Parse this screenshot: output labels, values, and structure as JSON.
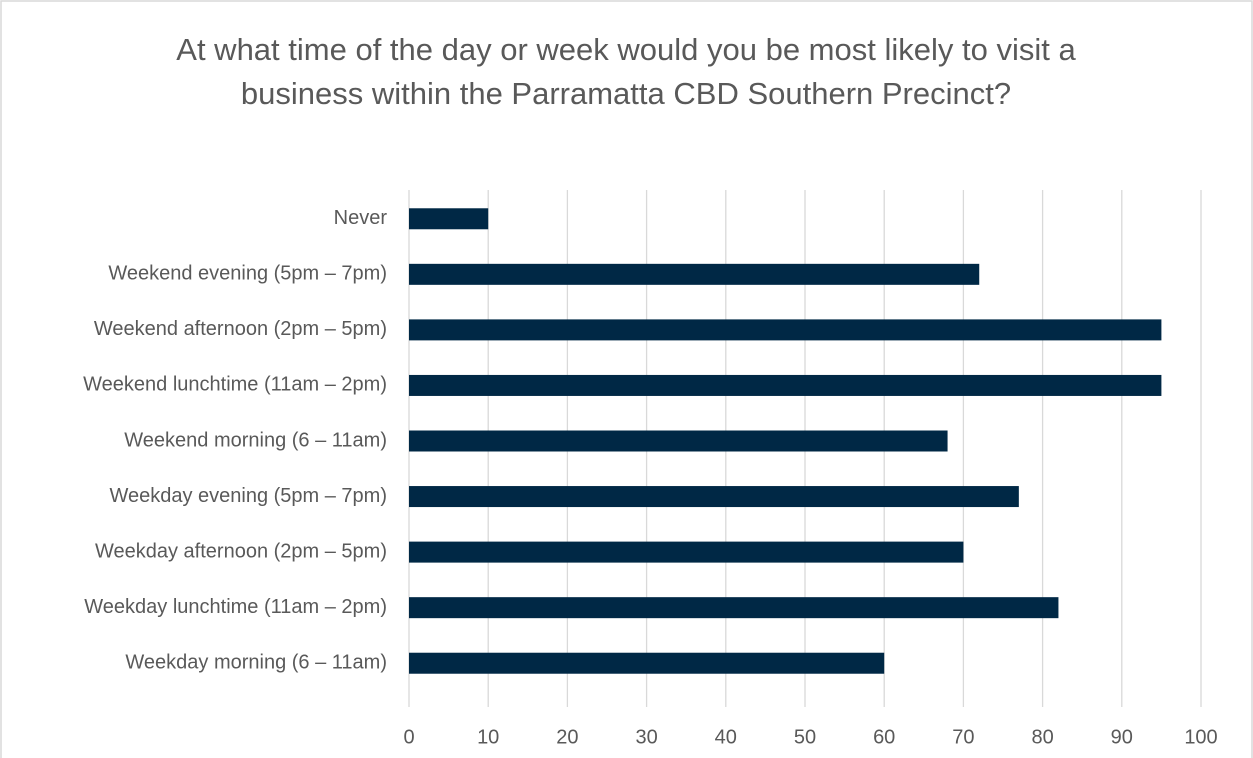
{
  "chart_data": {
    "type": "hbar",
    "title": "At what time of the day or week would you be most likely to visit a business within the Parramatta CBD Southern Precinct?",
    "categories": [
      "Never",
      "Weekend evening (5pm – 7pm)",
      "Weekend afternoon (2pm – 5pm)",
      "Weekend lunchtime (11am – 2pm)",
      "Weekend morning (6 – 11am)",
      "Weekday evening (5pm – 7pm)",
      "Weekday afternoon (2pm – 5pm)",
      "Weekday lunchtime (11am – 2pm)",
      "Weekday morning (6 – 11am)"
    ],
    "values": [
      10,
      72,
      95,
      95,
      68,
      77,
      70,
      82,
      60
    ],
    "color": "#002845",
    "xlim": [
      0,
      100
    ],
    "xticks": [
      0,
      10,
      20,
      30,
      40,
      50,
      60,
      70,
      80,
      90,
      100
    ],
    "grid": true
  }
}
